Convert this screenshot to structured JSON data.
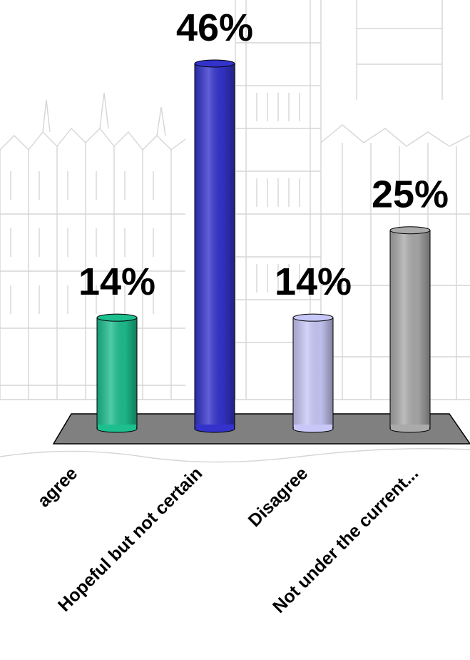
{
  "colors": {
    "background": "#ffffff",
    "floor_fill": "#808080",
    "floor_stroke": "#000000",
    "sketch": "#8a8a8a"
  },
  "chart_data": {
    "type": "bar",
    "style": "3d-cylinder",
    "title": "",
    "xlabel": "",
    "ylabel": "",
    "ylim": [
      0,
      46
    ],
    "grid": false,
    "legend": "none",
    "categories": [
      "agree",
      "Hopeful but not certain",
      "Disagree",
      "Not under the current..."
    ],
    "values": [
      14,
      46,
      14,
      25
    ],
    "value_labels": [
      "14%",
      "46%",
      "14%",
      "25%"
    ],
    "bar_colors": [
      "#1dbf8f",
      "#3333cc",
      "#c8c8f8",
      "#aaaaaa"
    ]
  }
}
